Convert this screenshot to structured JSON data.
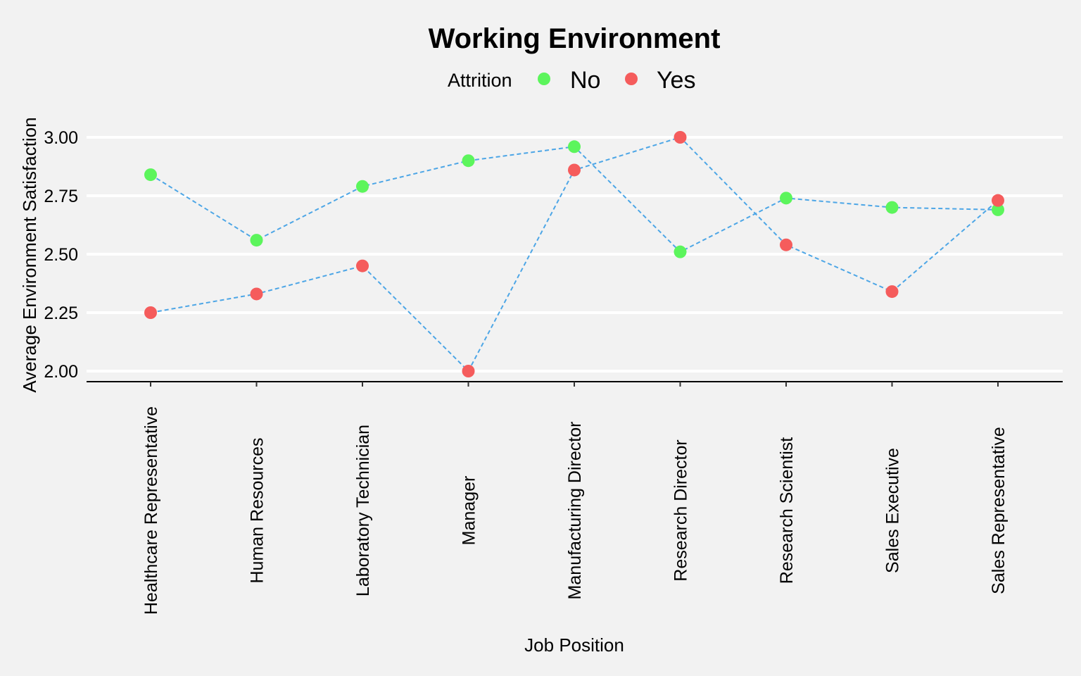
{
  "chart_data": {
    "type": "line",
    "title": "Working Environment",
    "xlabel": "Job Position",
    "ylabel": "Average Environment Satisfaction",
    "legend": {
      "title": "Attrition",
      "placement": "top-center",
      "entries": [
        {
          "label": "No",
          "color": "#5cf55c"
        },
        {
          "label": "Yes",
          "color": "#f55c5c"
        }
      ]
    },
    "line_color": "#4da6e6",
    "grid": true,
    "ylim": [
      1.96,
      3.04
    ],
    "yticks": [
      "2.00",
      "2.25",
      "2.50",
      "2.75",
      "3.00"
    ],
    "categories": [
      "Healthcare Representative",
      "Human Resources",
      "Laboratory Technician",
      "Manager",
      "Manufacturing Director",
      "Research Director",
      "Research Scientist",
      "Sales Executive",
      "Sales Representative"
    ],
    "series": [
      {
        "name": "No",
        "color": "#5cf55c",
        "values": [
          2.84,
          2.56,
          2.79,
          2.9,
          2.96,
          2.51,
          2.74,
          2.7,
          2.69
        ]
      },
      {
        "name": "Yes",
        "color": "#f55c5c",
        "values": [
          2.25,
          2.33,
          2.45,
          2.0,
          2.86,
          3.0,
          2.54,
          2.34,
          2.73
        ]
      }
    ]
  }
}
